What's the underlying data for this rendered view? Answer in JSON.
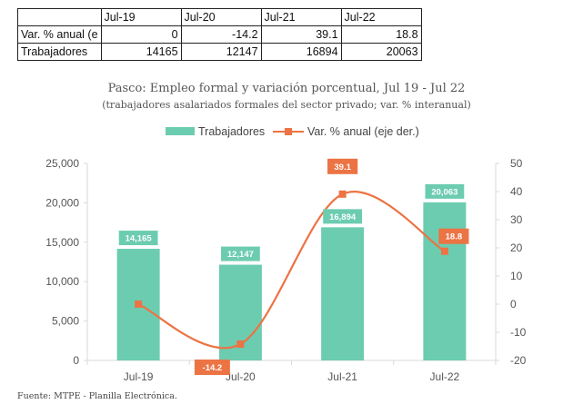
{
  "table": {
    "headers": [
      "",
      "Jul-19",
      "Jul-20",
      "Jul-21",
      "Jul-22"
    ],
    "rows": [
      [
        "Var. % anual (e",
        "0",
        "-14.2",
        "39.1",
        "18.8"
      ],
      [
        "Trabajadores",
        "14165",
        "12147",
        "16894",
        "20063"
      ]
    ]
  },
  "chart_data": {
    "type": "bar",
    "title": "Pasco: Empleo formal y variación porcentual, Jul 19 - Jul 22",
    "subtitle": "(trabajadores asalariados formales del sector privado; var. % interanual)",
    "categories": [
      "Jul-19",
      "Jul-20",
      "Jul-21",
      "Jul-22"
    ],
    "series": [
      {
        "name": "Trabajadores",
        "kind": "bar",
        "axis": "left",
        "values": [
          14165,
          12147,
          16894,
          20063
        ],
        "labels": [
          "14,165",
          "12,147",
          "16,894",
          "20,063"
        ],
        "color": "#6CCCB0"
      },
      {
        "name": "Var. % anual (eje der.)",
        "kind": "line",
        "axis": "right",
        "values": [
          0,
          -14.2,
          39.1,
          18.8
        ],
        "labels": [
          "",
          "-14.2",
          "39.1",
          "18.8"
        ],
        "color": "#EC7344"
      }
    ],
    "y_left": {
      "min": 0,
      "max": 25000,
      "ticks": [
        0,
        5000,
        10000,
        15000,
        20000,
        25000
      ],
      "tick_labels": [
        "0",
        "5,000",
        "10,000",
        "15,000",
        "20,000",
        "25,000"
      ]
    },
    "y_right": {
      "min": -20,
      "max": 50,
      "ticks": [
        -20,
        -10,
        0,
        10,
        20,
        30,
        40,
        50
      ],
      "tick_labels": [
        "-20",
        "-10",
        "0",
        "10",
        "20",
        "30",
        "40",
        "50"
      ]
    },
    "legend_position": "top-center",
    "grid": false
  },
  "source": "Fuente: MTPE - Planilla Electrónica.",
  "colors": {
    "bar": "#6CCCB0",
    "line": "#EC7344",
    "axis": "#D9D9D9",
    "text": "#555555"
  }
}
